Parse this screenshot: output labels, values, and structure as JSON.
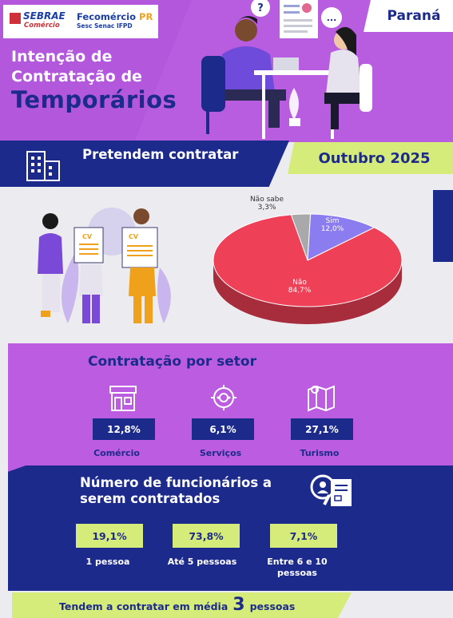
{
  "header": {
    "logo_sebrae": "SEBRAE",
    "logo_sebrae_sub": "Comércio",
    "logo_fecomercio": "Fecomércio",
    "logo_fecomercio_pr": "PR",
    "logo_fecomercio_sub": "Sesc  Senac  IFPD",
    "region": "Paraná",
    "title_line1": "Intenção de",
    "title_line2": "Contratação de",
    "title_line3": "Temporários"
  },
  "banner": {
    "text": "Pretendem contratar",
    "month": "Outubro 2025"
  },
  "colors": {
    "purple": "#b85ddf",
    "navy": "#1c2a8c",
    "lime": "#d6ec7a",
    "pie_nao": "#ee4056",
    "pie_sim": "#8b7cf0",
    "pie_nao_sabe": "#a9a9ab"
  },
  "chart_data": {
    "type": "pie",
    "title": "",
    "slices": [
      {
        "label": "Sim",
        "value": 12.0,
        "display": "12,0%",
        "color": "#8b7cf0"
      },
      {
        "label": "Não",
        "value": 84.7,
        "display": "84,7%",
        "color": "#ee4056"
      },
      {
        "label": "Não sabe",
        "value": 3.3,
        "display": "3,3%",
        "color": "#a9a9ab"
      }
    ]
  },
  "setor": {
    "title": "Contratação por setor",
    "items": [
      {
        "label": "Comércio",
        "value": "12,8%",
        "icon": "store-icon"
      },
      {
        "label": "Serviços",
        "value": "6,1%",
        "icon": "gears-icon"
      },
      {
        "label": "Turismo",
        "value": "27,1%",
        "icon": "map-icon"
      }
    ]
  },
  "funcionarios": {
    "title": "Número de funcionários a serem contratados",
    "items": [
      {
        "label": "1 pessoa",
        "value": "19,1%"
      },
      {
        "label": "Até 5 pessoas",
        "value": "73,8%"
      },
      {
        "label": "Entre 6 e 10 pessoas",
        "value": "7,1%"
      }
    ]
  },
  "footer": {
    "text_before": "Tendem a contratar em média",
    "number": "3",
    "text_after": "pessoas"
  },
  "scene": {
    "bubble_question": "?",
    "bubble_dots": "...",
    "cv_label": "CV"
  }
}
